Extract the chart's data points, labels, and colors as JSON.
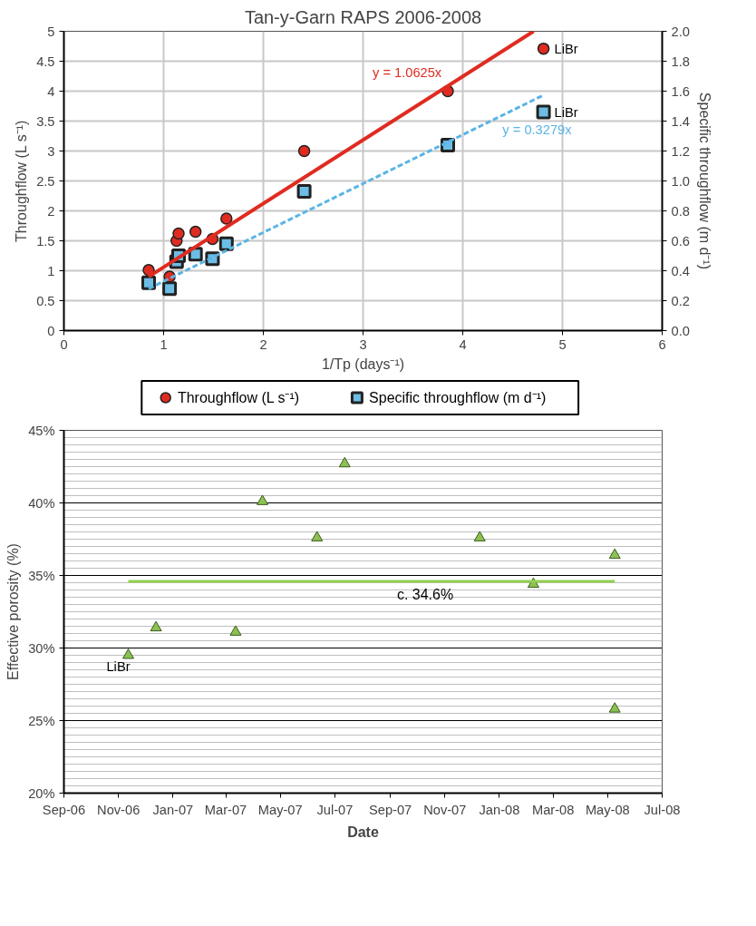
{
  "chart_data": [
    {
      "type": "scatter",
      "title": "Tan-y-Garn RAPS 2006-2008",
      "xlabel": "1/Tp (days⁻¹)",
      "ylabel": "Throughflow (L s⁻¹)",
      "y2label": "Specific throughflow (m d⁻¹)",
      "xlim": [
        0,
        6
      ],
      "xticks": [
        0,
        1,
        2,
        3,
        4,
        5,
        6
      ],
      "ylim": [
        0,
        5
      ],
      "yticks": [
        0,
        0.5,
        1,
        1.5,
        2,
        2.5,
        3,
        3.5,
        4,
        4.5,
        5
      ],
      "y2lim": [
        0,
        2
      ],
      "y2ticks": [
        {
          "value": 0,
          "label": "0.0"
        },
        {
          "value": 0.2,
          "label": "0.2"
        },
        {
          "value": 0.4,
          "label": "0.4"
        },
        {
          "value": 0.6,
          "label": "0.6"
        },
        {
          "value": 0.8,
          "label": "0.8"
        },
        {
          "value": 1,
          "label": "1.0"
        },
        {
          "value": 1.2,
          "label": "1.2"
        },
        {
          "value": 1.4,
          "label": "1.4"
        },
        {
          "value": 1.6,
          "label": "1.6"
        },
        {
          "value": 1.8,
          "label": "1.8"
        },
        {
          "value": 2,
          "label": "2.0"
        }
      ],
      "grid": true,
      "legend": "bottom",
      "series": [
        {
          "name": "Throughflow (L s⁻¹)",
          "type": "scatter",
          "marker": "circle",
          "color": "#e02b20",
          "x": [
            0.85,
            1.06,
            1.13,
            1.15,
            1.32,
            1.49,
            1.63,
            2.41,
            3.85,
            4.81
          ],
          "values": [
            1.01,
            0.9,
            1.5,
            1.62,
            1.65,
            1.53,
            1.87,
            3.0,
            4.0,
            4.71
          ]
        },
        {
          "name": "Specific throughflow (m d⁻¹)",
          "type": "scatter",
          "marker": "square",
          "axis": "y2",
          "color": "#6cbde6",
          "x": [
            0.85,
            1.06,
            1.13,
            1.15,
            1.32,
            1.49,
            1.63,
            2.41,
            3.85,
            4.81
          ],
          "values": [
            0.32,
            0.28,
            0.46,
            0.5,
            0.51,
            0.48,
            0.58,
            0.93,
            1.24,
            1.46
          ]
        },
        {
          "name": "y = 1.0625x",
          "type": "line",
          "line_style": "solid",
          "color": "#e02b20",
          "x": [
            0.85,
            4.71
          ],
          "values": [
            0.9,
            5.0
          ]
        },
        {
          "name": "y = 0.3279x",
          "type": "line",
          "line_style": "dashed",
          "axis": "y2",
          "color": "#5ab4e5",
          "x": [
            0.85,
            4.8
          ],
          "values": [
            0.28,
            1.57
          ]
        }
      ],
      "annotations": [
        {
          "text": "LiBr",
          "x": 4.81,
          "y": 4.71
        },
        {
          "text": "LiBr",
          "x": 4.81,
          "y": 3.65
        }
      ]
    },
    {
      "type": "scatter",
      "xlabel": "Date",
      "ylabel": "Effective porosity (%)",
      "xlim": [
        "2006-09-01",
        "2008-07-01"
      ],
      "xticks": [
        {
          "value": "2006-09-01",
          "label": "Sep-06"
        },
        {
          "value": "2006-11-01",
          "label": "Nov-06"
        },
        {
          "value": "2007-01-01",
          "label": "Jan-07"
        },
        {
          "value": "2007-03-01",
          "label": "Mar-07"
        },
        {
          "value": "2007-05-01",
          "label": "May-07"
        },
        {
          "value": "2007-07-01",
          "label": "Jul-07"
        },
        {
          "value": "2007-09-01",
          "label": "Sep-07"
        },
        {
          "value": "2007-11-01",
          "label": "Nov-07"
        },
        {
          "value": "2008-01-01",
          "label": "Jan-08"
        },
        {
          "value": "2008-03-01",
          "label": "Mar-08"
        },
        {
          "value": "2008-05-01",
          "label": "May-08"
        },
        {
          "value": "2008-07-01",
          "label": "Jul-08"
        }
      ],
      "ylim": [
        20,
        45
      ],
      "yticks": [
        {
          "value": 20,
          "label": "20%"
        },
        {
          "value": 25,
          "label": "25%"
        },
        {
          "value": 30,
          "label": "30%"
        },
        {
          "value": 35,
          "label": "35%"
        },
        {
          "value": 40,
          "label": "40%"
        },
        {
          "value": 45,
          "label": "45%"
        }
      ],
      "grid": "y",
      "series": [
        {
          "type": "scatter",
          "marker": "triangle",
          "color": "#8cc152",
          "x": [
            "2006-11-12",
            "2006-12-13",
            "2007-03-12",
            "2007-04-11",
            "2007-06-11",
            "2007-07-12",
            "2007-12-10",
            "2008-02-08",
            "2008-05-09",
            "2008-05-09"
          ],
          "values": [
            29.5,
            31.4,
            31.1,
            40.1,
            37.6,
            42.7,
            37.6,
            34.4,
            36.4,
            25.8
          ]
        },
        {
          "type": "line",
          "line_style": "solid",
          "color": "#92d050",
          "x": [
            "2006-11-12",
            "2008-05-09"
          ],
          "values": [
            34.6,
            34.6
          ]
        }
      ],
      "annotations": [
        {
          "text": "LiBr",
          "x": "2006-11-12",
          "y": 29.5
        },
        {
          "text": "c. 34.6%",
          "x": "2007-10-10",
          "y": 34.6
        }
      ]
    }
  ]
}
